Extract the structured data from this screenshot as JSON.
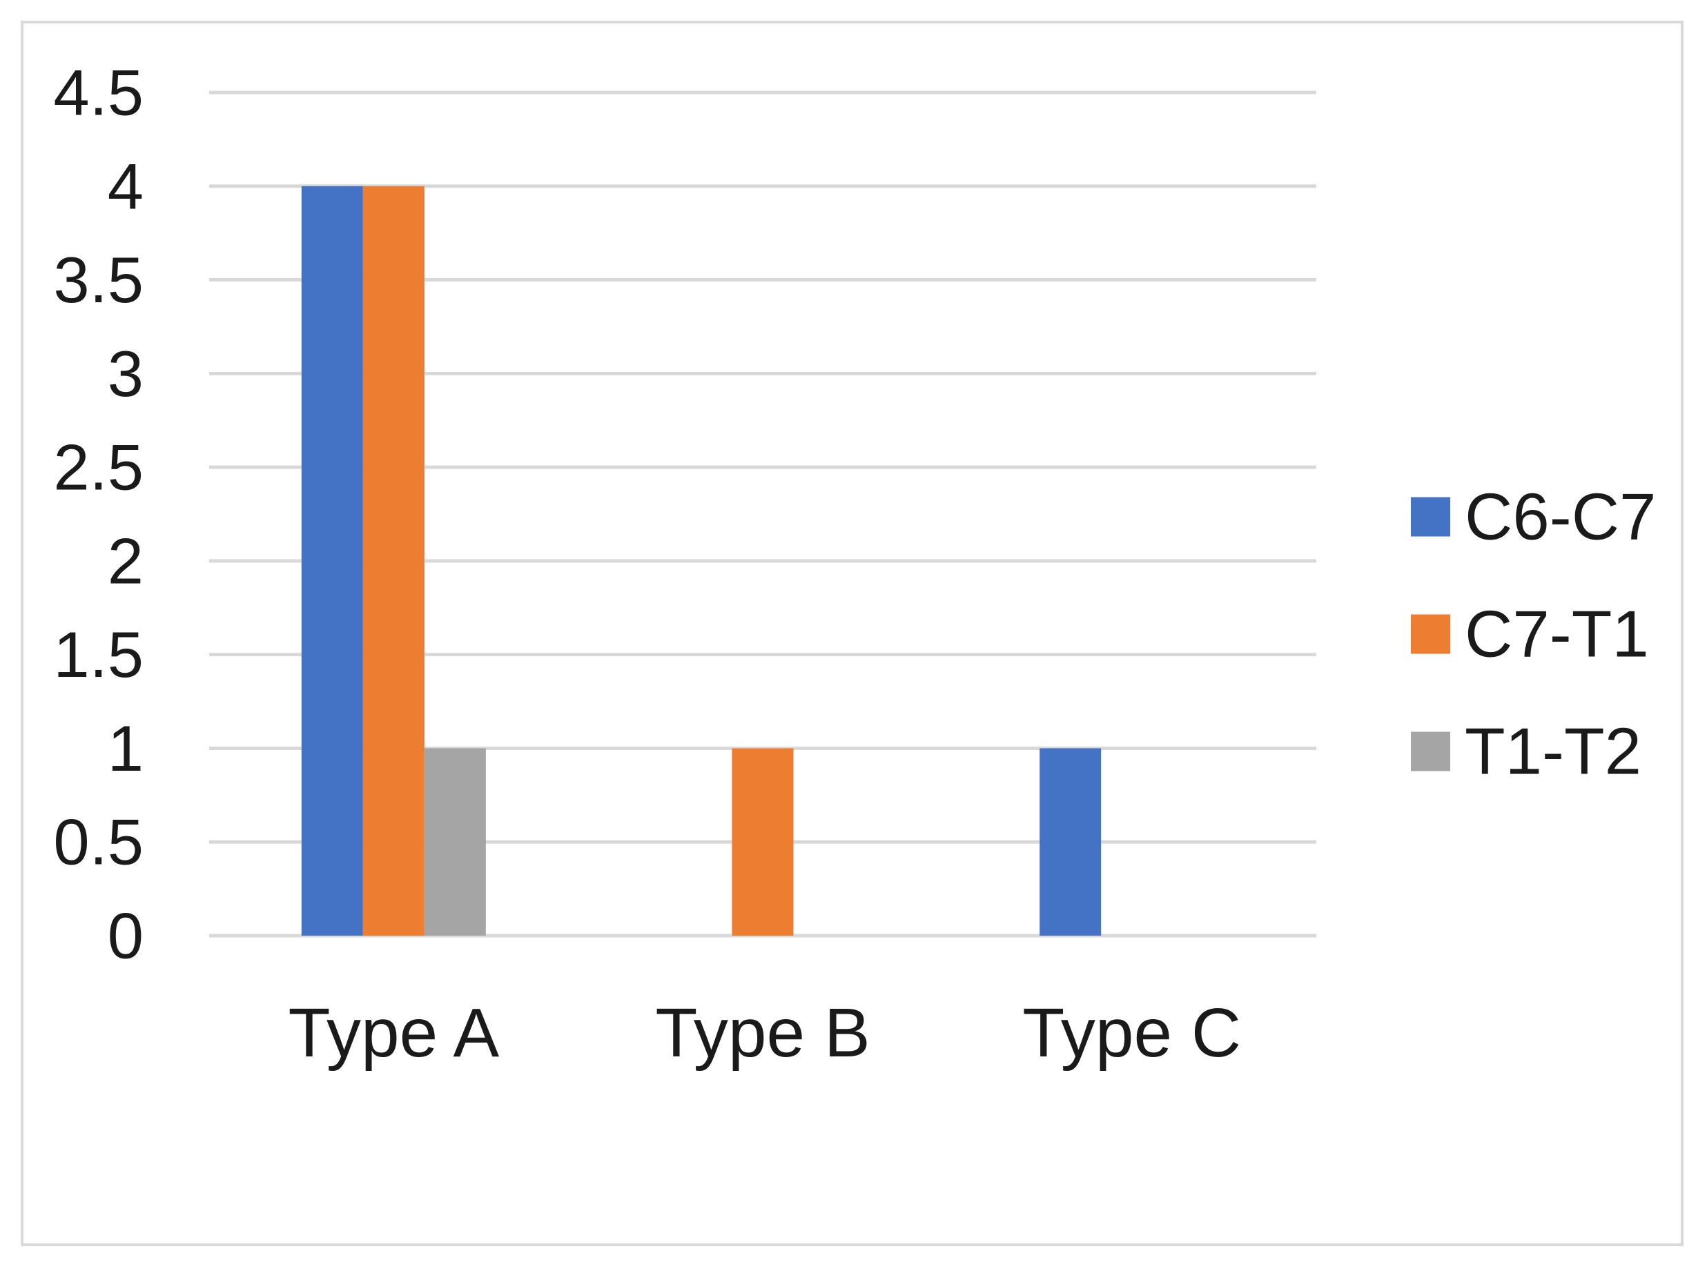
{
  "chart_data": {
    "type": "bar",
    "categories": [
      "Type A",
      "Type B",
      "Type C"
    ],
    "series": [
      {
        "name": "C6-C7",
        "color": "#4472C4",
        "values": [
          4,
          0,
          1
        ]
      },
      {
        "name": "C7-T1",
        "color": "#ED7D31",
        "values": [
          4,
          1,
          0
        ]
      },
      {
        "name": "T1-T2",
        "color": "#A5A5A5",
        "values": [
          1,
          0,
          0
        ]
      }
    ],
    "title": "",
    "xlabel": "",
    "ylabel": "",
    "ylim": [
      0,
      4.5
    ],
    "yticks": [
      "0",
      "0.5",
      "1",
      "1.5",
      "2",
      "2.5",
      "3",
      "3.5",
      "4",
      "4.5"
    ],
    "grid": true,
    "legend_position": "right",
    "gridline_color": "#D9D9D9"
  }
}
